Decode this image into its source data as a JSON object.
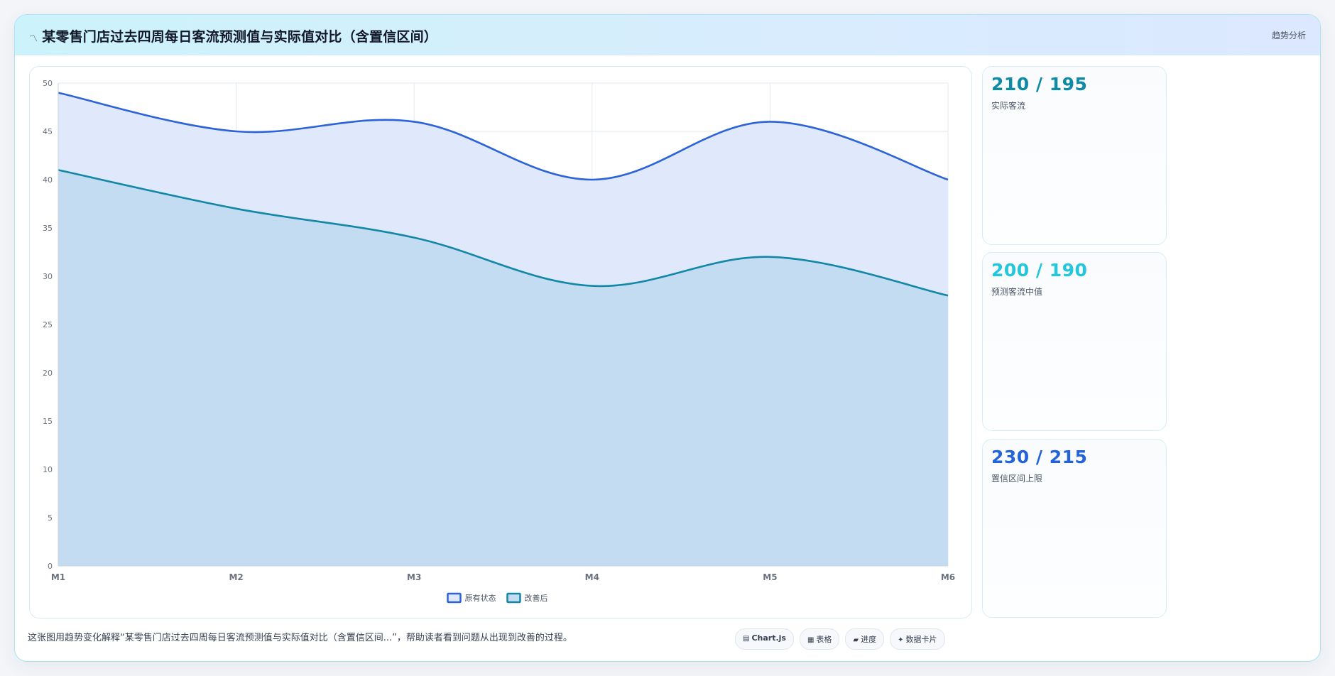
{
  "header": {
    "title": "某零售门店过去四周每日客流预测值与实际值对比（含置信区间）",
    "tag": "趋势分析"
  },
  "stats": [
    {
      "value": "210 / 195",
      "label": "实际客流",
      "color": "#0e8aa5"
    },
    {
      "value": "200 / 190",
      "label": "预测客流中值",
      "color": "#22c6dd"
    },
    {
      "value": "230 / 215",
      "label": "置信区间上限",
      "color": "#2563d9"
    }
  ],
  "footer": {
    "caption": "这张图用趋势变化解释“某零售门店过去四周每日客流预测值与实际值对比（含置信区间...”，帮助读者看到问题从出现到改善的过程。",
    "pills": [
      {
        "icon": "chart-icon",
        "glyph": "▤",
        "label": "Chart.js",
        "bold": true
      },
      {
        "icon": "table-icon",
        "glyph": "▦",
        "label": "表格",
        "bold": false
      },
      {
        "icon": "progress-icon",
        "glyph": "▰",
        "label": "进度",
        "bold": false
      },
      {
        "icon": "sparkle-icon",
        "glyph": "✦",
        "label": "数据卡片",
        "bold": false
      }
    ]
  },
  "chart_data": {
    "type": "area",
    "categories": [
      "M1",
      "M2",
      "M3",
      "M4",
      "M5",
      "M6"
    ],
    "series": [
      {
        "name": "原有状态",
        "values": [
          49,
          45,
          46,
          40,
          46,
          40
        ],
        "color": "#2d63d8",
        "fill": "#dfe9fb"
      },
      {
        "name": "改善后",
        "values": [
          41,
          37,
          34,
          29,
          32,
          28
        ],
        "color": "#1287a8",
        "fill": "#c4dcf1"
      }
    ],
    "ylim": [
      0,
      50
    ],
    "yticks": [
      0,
      5,
      10,
      15,
      20,
      25,
      30,
      35,
      40,
      45,
      50
    ],
    "grid": true,
    "legend_position": "bottom-center"
  }
}
